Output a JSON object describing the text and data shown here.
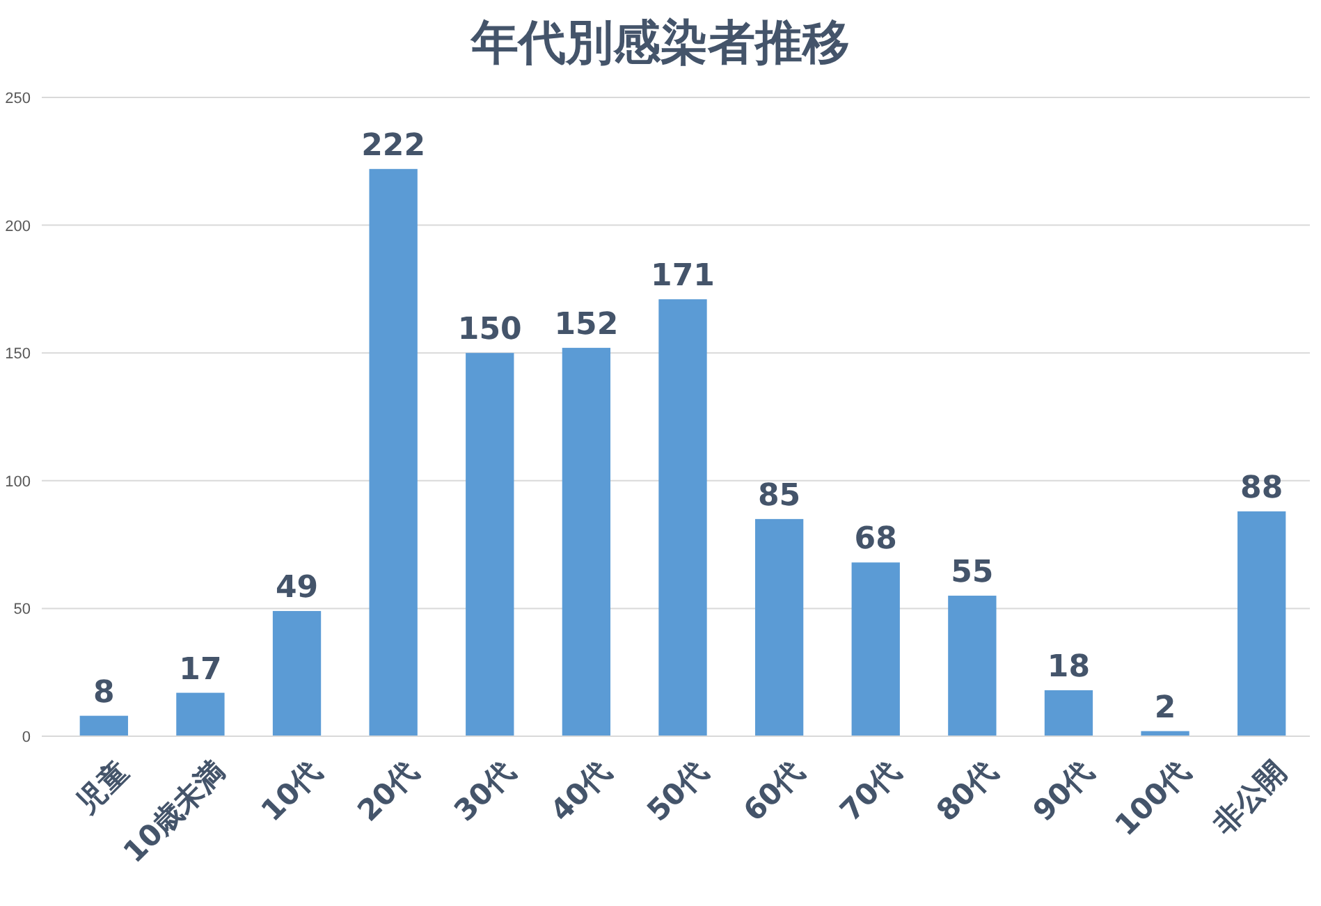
{
  "chart_data": {
    "type": "bar",
    "title": "年代別感染者推移",
    "categories": [
      "児童",
      "10歳未満",
      "10代",
      "20代",
      "30代",
      "40代",
      "50代",
      "60代",
      "70代",
      "80代",
      "90代",
      "100代",
      "非公開"
    ],
    "values": [
      8,
      17,
      49,
      222,
      150,
      152,
      171,
      85,
      68,
      55,
      18,
      2,
      88
    ],
    "color": "#5b9bd5",
    "ylim": [
      0,
      250
    ],
    "yticks": [
      0,
      50,
      100,
      150,
      200,
      250
    ],
    "grid": "y",
    "data_labels": true
  }
}
